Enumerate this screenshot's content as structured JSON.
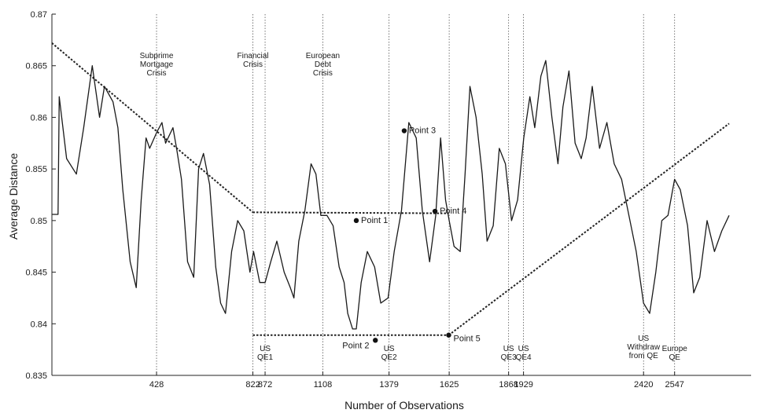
{
  "chart_data": {
    "type": "line",
    "xlabel": "Number of Observations",
    "ylabel": "Average Distance",
    "xlim": [
      0,
      2860
    ],
    "ylim": [
      0.835,
      0.87
    ],
    "yticks": [
      "0.87",
      "0.865",
      "0.86",
      "0.855",
      "0.85",
      "0.845",
      "0.84",
      "0.835"
    ],
    "ytick_values": [
      0.87,
      0.865,
      0.86,
      0.855,
      0.85,
      0.845,
      0.84,
      0.835
    ],
    "xticks": [
      {
        "value": 428,
        "label": "428"
      },
      {
        "value": 822,
        "label": "822"
      },
      {
        "value": 872,
        "label": "872"
      },
      {
        "value": 1108,
        "label": "1108"
      },
      {
        "value": 1379,
        "label": "1379"
      },
      {
        "value": 1625,
        "label": "1625"
      },
      {
        "value": 1868,
        "label": "1868"
      },
      {
        "value": 1929,
        "label": "1929"
      },
      {
        "value": 2420,
        "label": "2420"
      },
      {
        "value": 2547,
        "label": "2547"
      }
    ],
    "grid": false,
    "event_lines": [
      428,
      822,
      872,
      1108,
      1379,
      1625,
      1868,
      1929,
      2420,
      2547
    ],
    "top_annotations": [
      {
        "x": 428,
        "lines": [
          "Subprime",
          "Mortgage",
          "Crisis"
        ]
      },
      {
        "x": 822,
        "lines": [
          "Financial",
          "Crisis"
        ]
      },
      {
        "x": 1108,
        "lines": [
          "European",
          "Debt",
          "Crisis"
        ]
      }
    ],
    "bottom_annotations": [
      {
        "x": 872,
        "lines": [
          "US",
          "QE1"
        ]
      },
      {
        "x": 1379,
        "lines": [
          "US",
          "QE2"
        ]
      },
      {
        "x": 1868,
        "lines": [
          "US",
          "QE3"
        ]
      },
      {
        "x": 1929,
        "lines": [
          "US",
          "QE4"
        ]
      },
      {
        "x": 2420,
        "lines": [
          "US",
          "Withdraw",
          "from QE"
        ]
      },
      {
        "x": 2547,
        "lines": [
          "Europe",
          "QE"
        ]
      }
    ],
    "points": [
      {
        "label": "Point 1",
        "x": 1245,
        "y": 0.85
      },
      {
        "label": "Point 2",
        "x": 1323,
        "y": 0.8384
      },
      {
        "label": "Point 3",
        "x": 1441,
        "y": 0.8587
      },
      {
        "label": "Point 4",
        "x": 1567,
        "y": 0.8509
      },
      {
        "label": "Point 5",
        "x": 1623,
        "y": 0.8389
      }
    ],
    "trend_lines": [
      {
        "x": [
          0,
          822
        ],
        "y": [
          0.8672,
          0.8508
        ]
      },
      {
        "x": [
          822,
          1623
        ],
        "y": [
          0.8508,
          0.8507
        ]
      },
      {
        "x": [
          822,
          1623
        ],
        "y": [
          0.8389,
          0.8389
        ]
      },
      {
        "x": [
          1623,
          2770
        ],
        "y": [
          0.8389,
          0.8594
        ]
      }
    ],
    "series": [
      {
        "values": [
          [
            0,
            0.8506
          ],
          [
            25,
            0.8506
          ],
          [
            30,
            0.862
          ],
          [
            60,
            0.856
          ],
          [
            100,
            0.8545
          ],
          [
            130,
            0.859
          ],
          [
            165,
            0.865
          ],
          [
            195,
            0.86
          ],
          [
            215,
            0.863
          ],
          [
            250,
            0.8615
          ],
          [
            270,
            0.859
          ],
          [
            290,
            0.853
          ],
          [
            320,
            0.846
          ],
          [
            345,
            0.8435
          ],
          [
            365,
            0.852
          ],
          [
            385,
            0.858
          ],
          [
            400,
            0.857
          ],
          [
            428,
            0.8585
          ],
          [
            450,
            0.8595
          ],
          [
            465,
            0.8575
          ],
          [
            495,
            0.859
          ],
          [
            510,
            0.857
          ],
          [
            530,
            0.854
          ],
          [
            555,
            0.846
          ],
          [
            580,
            0.8445
          ],
          [
            600,
            0.855
          ],
          [
            620,
            0.8565
          ],
          [
            645,
            0.8535
          ],
          [
            670,
            0.8455
          ],
          [
            690,
            0.842
          ],
          [
            710,
            0.841
          ],
          [
            735,
            0.847
          ],
          [
            760,
            0.85
          ],
          [
            785,
            0.849
          ],
          [
            810,
            0.845
          ],
          [
            825,
            0.847
          ],
          [
            850,
            0.844
          ],
          [
            872,
            0.844
          ],
          [
            895,
            0.846
          ],
          [
            920,
            0.848
          ],
          [
            950,
            0.845
          ],
          [
            975,
            0.8435
          ],
          [
            990,
            0.8425
          ],
          [
            1010,
            0.848
          ],
          [
            1035,
            0.851
          ],
          [
            1060,
            0.8555
          ],
          [
            1080,
            0.8545
          ],
          [
            1100,
            0.8505
          ],
          [
            1125,
            0.8505
          ],
          [
            1150,
            0.8495
          ],
          [
            1175,
            0.8455
          ],
          [
            1195,
            0.844
          ],
          [
            1210,
            0.841
          ],
          [
            1230,
            0.8395
          ],
          [
            1245,
            0.8395
          ],
          [
            1265,
            0.844
          ],
          [
            1290,
            0.847
          ],
          [
            1320,
            0.8455
          ],
          [
            1345,
            0.842
          ],
          [
            1375,
            0.8425
          ],
          [
            1400,
            0.847
          ],
          [
            1430,
            0.851
          ],
          [
            1460,
            0.8595
          ],
          [
            1490,
            0.858
          ],
          [
            1515,
            0.851
          ],
          [
            1545,
            0.846
          ],
          [
            1570,
            0.8505
          ],
          [
            1590,
            0.858
          ],
          [
            1610,
            0.852
          ],
          [
            1625,
            0.85
          ],
          [
            1645,
            0.8475
          ],
          [
            1670,
            0.847
          ],
          [
            1690,
            0.8545
          ],
          [
            1710,
            0.863
          ],
          [
            1735,
            0.86
          ],
          [
            1760,
            0.8545
          ],
          [
            1780,
            0.848
          ],
          [
            1805,
            0.8495
          ],
          [
            1830,
            0.857
          ],
          [
            1855,
            0.8555
          ],
          [
            1880,
            0.85
          ],
          [
            1905,
            0.852
          ],
          [
            1930,
            0.858
          ],
          [
            1955,
            0.862
          ],
          [
            1975,
            0.859
          ],
          [
            2000,
            0.864
          ],
          [
            2020,
            0.8655
          ],
          [
            2045,
            0.86
          ],
          [
            2070,
            0.8555
          ],
          [
            2090,
            0.861
          ],
          [
            2115,
            0.8645
          ],
          [
            2140,
            0.8575
          ],
          [
            2165,
            0.856
          ],
          [
            2185,
            0.858
          ],
          [
            2210,
            0.863
          ],
          [
            2240,
            0.857
          ],
          [
            2270,
            0.8595
          ],
          [
            2300,
            0.8555
          ],
          [
            2330,
            0.854
          ],
          [
            2360,
            0.8505
          ],
          [
            2390,
            0.847
          ],
          [
            2420,
            0.842
          ],
          [
            2445,
            0.841
          ],
          [
            2470,
            0.845
          ],
          [
            2495,
            0.85
          ],
          [
            2520,
            0.8505
          ],
          [
            2547,
            0.854
          ],
          [
            2570,
            0.853
          ],
          [
            2600,
            0.8495
          ],
          [
            2625,
            0.843
          ],
          [
            2650,
            0.8445
          ],
          [
            2680,
            0.85
          ],
          [
            2710,
            0.847
          ],
          [
            2740,
            0.849
          ],
          [
            2770,
            0.8505
          ]
        ]
      }
    ]
  }
}
